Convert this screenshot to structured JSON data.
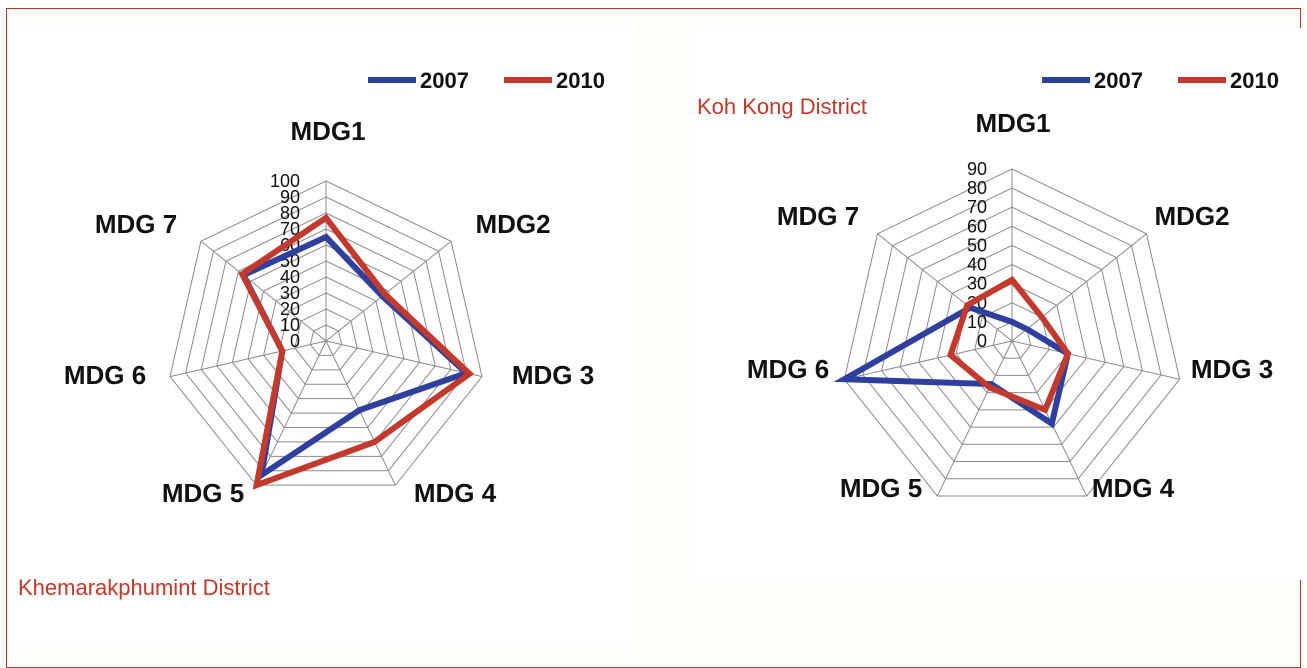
{
  "chart_data": [
    {
      "type": "radar",
      "title": "",
      "district_label": "Khemarakphumint  District",
      "axes": [
        "MDG1",
        "MDG2",
        "MDG 3",
        "MDG 4",
        "MDG 5",
        "MDG 6",
        "MDG 7"
      ],
      "rlim": [
        0,
        100
      ],
      "ticks": [
        "0",
        "10",
        "20",
        "30",
        "40",
        "50",
        "60",
        "70",
        "80",
        "90",
        "100"
      ],
      "legend_position": "top-right",
      "series": [
        {
          "name": "2007",
          "color": "#2e3f9e",
          "values": [
            65,
            45,
            90,
            48,
            93,
            28,
            66
          ]
        },
        {
          "name": "2010",
          "color": "#c23a2e",
          "values": [
            77,
            47,
            92,
            70,
            100,
            28,
            67
          ]
        }
      ]
    },
    {
      "type": "radar",
      "title": "",
      "district_label": "Koh Kong District",
      "axes": [
        "MDG1",
        "MDG2",
        "MDG 3",
        "MDG 4",
        "MDG 5",
        "MDG 6",
        "MDG 7"
      ],
      "rlim": [
        0,
        90
      ],
      "ticks": [
        "0",
        "10",
        "20",
        "30",
        "40",
        "50",
        "60",
        "70",
        "80",
        "90"
      ],
      "legend_position": "top-right",
      "series": [
        {
          "name": "2007",
          "color": "#2e3f9e",
          "values": [
            10,
            10,
            30,
            48,
            25,
            90,
            28
          ]
        },
        {
          "name": "2010",
          "color": "#c23a2e",
          "values": [
            32,
            20,
            30,
            40,
            27,
            33,
            30
          ]
        }
      ]
    }
  ]
}
